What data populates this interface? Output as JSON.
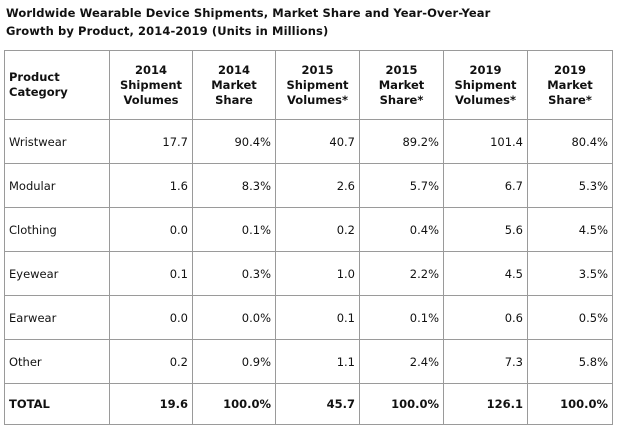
{
  "title": {
    "line1": "Worldwide Wearable Device Shipments, Market Share and Year-Over-Year",
    "line2": "Growth by Product, 2014-2019 (Units in Millions)"
  },
  "chart_data": {
    "type": "table",
    "title": "Worldwide Wearable Device Shipments, Market Share and Year-Over-Year Growth by Product, 2014-2019 (Units in Millions)",
    "columns": [
      {
        "lines": [
          "Product",
          "Category"
        ]
      },
      {
        "lines": [
          "2014",
          "Shipment",
          "Volumes"
        ]
      },
      {
        "lines": [
          "2014",
          "Market",
          "Share"
        ]
      },
      {
        "lines": [
          "2015",
          "Shipment",
          "Volumes*"
        ]
      },
      {
        "lines": [
          "2015",
          "Market",
          "Share*"
        ]
      },
      {
        "lines": [
          "2019",
          "Shipment",
          "Volumes*"
        ]
      },
      {
        "lines": [
          "2019",
          "Market",
          "Share*"
        ]
      }
    ],
    "rows": [
      [
        "Wristwear",
        "17.7",
        "90.4%",
        "40.7",
        "89.2%",
        "101.4",
        "80.4%"
      ],
      [
        "Modular",
        "1.6",
        "8.3%",
        "2.6",
        "5.7%",
        "6.7",
        "5.3%"
      ],
      [
        "Clothing",
        "0.0",
        "0.1%",
        "0.2",
        "0.4%",
        "5.6",
        "4.5%"
      ],
      [
        "Eyewear",
        "0.1",
        "0.3%",
        "1.0",
        "2.2%",
        "4.5",
        "3.5%"
      ],
      [
        "Earwear",
        "0.0",
        "0.0%",
        "0.1",
        "0.1%",
        "0.6",
        "0.5%"
      ],
      [
        "Other",
        "0.2",
        "0.9%",
        "1.1",
        "2.4%",
        "7.3",
        "5.8%"
      ]
    ],
    "total": [
      "TOTAL",
      "19.6",
      "100.0%",
      "45.7",
      "100.0%",
      "126.1",
      "100.0%"
    ]
  }
}
